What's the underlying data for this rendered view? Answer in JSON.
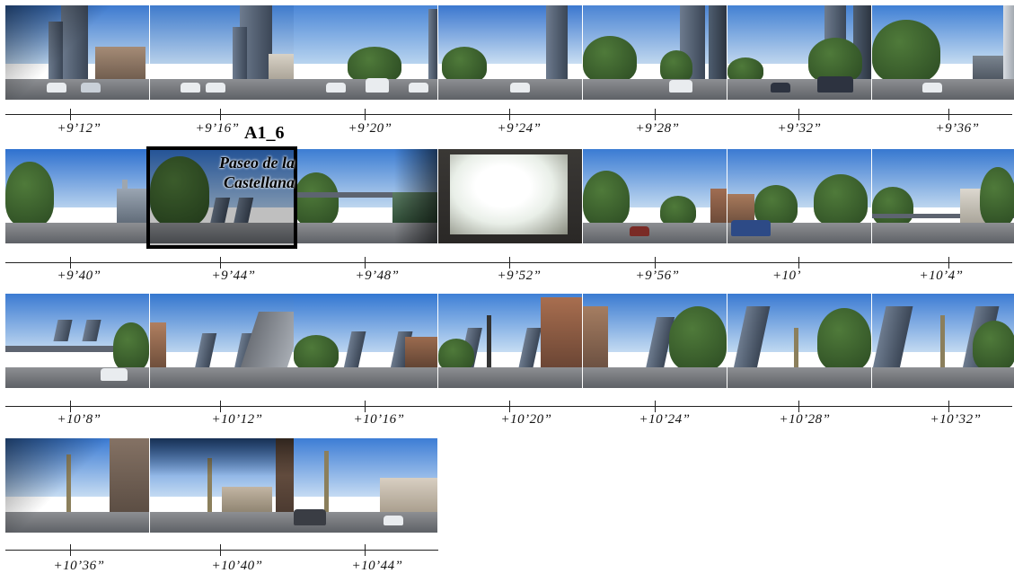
{
  "annotation": {
    "id": "A1_6",
    "street_line1": "Paseo de la",
    "street_line2": "Castellana"
  },
  "rows": [
    {
      "timestamps": [
        "+9’12”",
        "+9’16”",
        "+9’20”",
        "+9’24”",
        "+9’28”",
        "+9’32”",
        "+9’36”"
      ]
    },
    {
      "timestamps": [
        "+9’40”",
        "+9’44”",
        "+9’48”",
        "+9’52”",
        "+9’56”",
        "+10’",
        "+10’4”"
      ]
    },
    {
      "timestamps": [
        "+10’8”",
        "+10’12”",
        "+10’16”",
        "+10’20”",
        "+10’24”",
        "+10’28”",
        "+10’32”"
      ]
    },
    {
      "timestamps": [
        "+10’36”",
        "+10’40”",
        "+10’44”"
      ]
    }
  ],
  "colors": {
    "sky": "#5f93d6",
    "highlight_border": "#000000",
    "timeline": "#222222"
  }
}
